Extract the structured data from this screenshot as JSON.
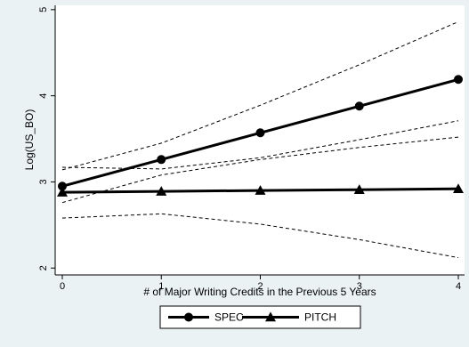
{
  "chart_data": {
    "type": "line",
    "xlabel": "# of Major Writing Credits in the Previous 5 Years",
    "ylabel": "Log(US_BO)",
    "xlim": [
      0,
      4
    ],
    "ylim": [
      1.92,
      5.05
    ],
    "x_ticks": [
      0,
      1,
      2,
      3,
      4
    ],
    "y_ticks": [
      2,
      3,
      4,
      5
    ],
    "grid": false,
    "legend_position": "bottom",
    "series": [
      {
        "name": "SPEC",
        "marker": "circle",
        "color": "#000000",
        "x": [
          0,
          1,
          2,
          3,
          4
        ],
        "y": [
          2.95,
          3.26,
          3.57,
          3.88,
          4.19
        ],
        "ci_lower": [
          2.76,
          3.08,
          3.26,
          3.4,
          3.52
        ],
        "ci_upper": [
          3.14,
          3.45,
          3.89,
          4.36,
          4.86
        ]
      },
      {
        "name": "PITCH",
        "marker": "triangle",
        "color": "#000000",
        "x": [
          0,
          1,
          2,
          3,
          4
        ],
        "y": [
          2.88,
          2.89,
          2.9,
          2.91,
          2.92
        ],
        "ci_lower": [
          2.58,
          2.63,
          2.51,
          2.33,
          2.12
        ],
        "ci_upper": [
          3.17,
          3.15,
          3.28,
          3.49,
          3.71
        ]
      }
    ]
  }
}
